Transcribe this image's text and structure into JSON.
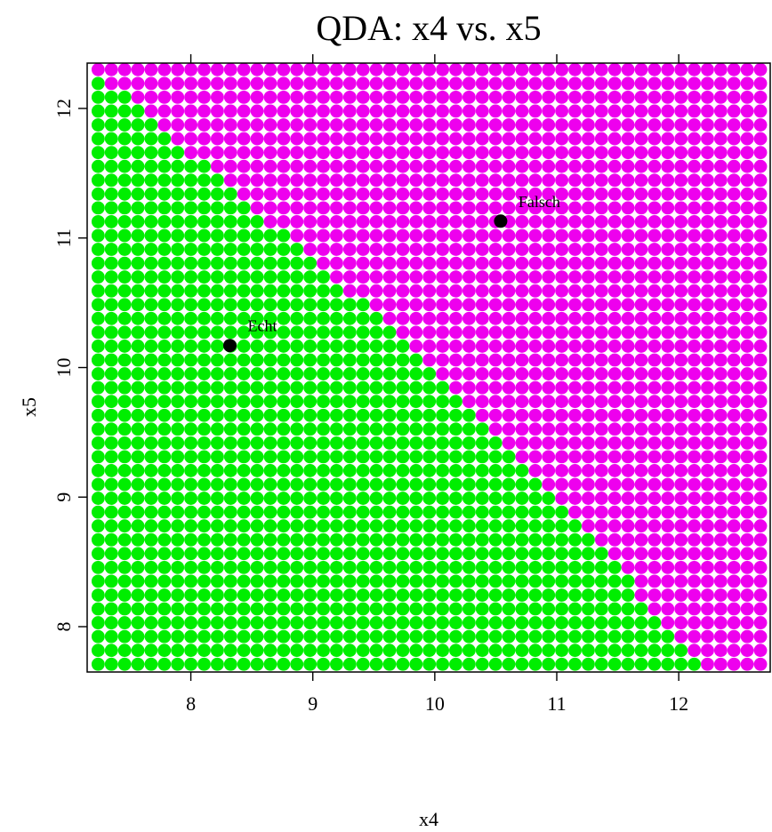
{
  "chart_data": {
    "type": "scatter",
    "title": "QDA: x4 vs. x5",
    "xlabel": "x4",
    "ylabel": "x5",
    "xlim": [
      7.15,
      12.75
    ],
    "ylim": [
      7.65,
      12.35
    ],
    "x_ticks": [
      8,
      9,
      10,
      11,
      12
    ],
    "y_ticks": [
      8,
      9,
      10,
      11,
      12
    ],
    "x_tick_labels": [
      "8",
      "9",
      "10",
      "11",
      "12"
    ],
    "y_tick_labels": [
      "8",
      "9",
      "10",
      "11",
      "12"
    ],
    "x_minor_ticks_top": [
      8,
      9,
      10,
      11,
      12
    ],
    "grid": false,
    "legend": "none",
    "classes": [
      {
        "name": "Echt",
        "color": "#00ee00"
      },
      {
        "name": "Falsch",
        "color": "#ee00ee"
      }
    ],
    "grid_points": {
      "x_min": 7.24,
      "x_max": 12.67,
      "y_min": 7.71,
      "y_max": 12.3,
      "nx": 51,
      "ny": 44,
      "decision_boundary": {
        "description_points": [
          {
            "x": 7.4,
            "y": 12.15
          },
          {
            "x": 10.0,
            "y": 10.0
          },
          {
            "x": 12.2,
            "y": 7.71
          }
        ]
      }
    },
    "class_means": [
      {
        "label": "Echt",
        "x": 8.32,
        "y": 10.17
      },
      {
        "label": "Falsch",
        "x": 10.54,
        "y": 11.13
      }
    ],
    "colors": {
      "echt": "#00ee00",
      "falsch": "#ee00ee",
      "mean_point": "#000000"
    }
  }
}
